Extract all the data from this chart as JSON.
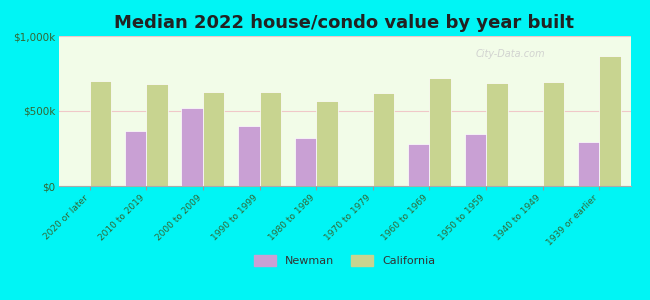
{
  "title": "Median 2022 house/condo value by year built",
  "categories": [
    "2020 or later",
    "2010 to 2019",
    "2000 to 2009",
    "1990 to 1999",
    "1980 to 1989",
    "1970 to 1979",
    "1960 to 1969",
    "1950 to 1959",
    "1940 to 1949",
    "1939 or earlier"
  ],
  "newman_values": [
    null,
    370000,
    520000,
    400000,
    320000,
    null,
    280000,
    350000,
    null,
    295000
  ],
  "california_values": [
    700000,
    680000,
    630000,
    630000,
    570000,
    620000,
    720000,
    690000,
    695000,
    870000
  ],
  "newman_color": "#c9a0d4",
  "california_color": "#c8d490",
  "figure_bg_color": "#00f5f5",
  "plot_bg_color": "#f0fff0",
  "ylim": [
    0,
    1000000
  ],
  "ytick_labels": [
    "$0",
    "$500k",
    "$1,000k"
  ],
  "ytick_values": [
    0,
    500000,
    1000000
  ],
  "legend_newman": "Newman",
  "legend_california": "California",
  "title_fontsize": 13,
  "bar_width": 0.38,
  "watermark": "City-Data.com",
  "grid_color": "#f0c8c8",
  "tick_label_color": "#336633",
  "axis_label_color": "#336633"
}
